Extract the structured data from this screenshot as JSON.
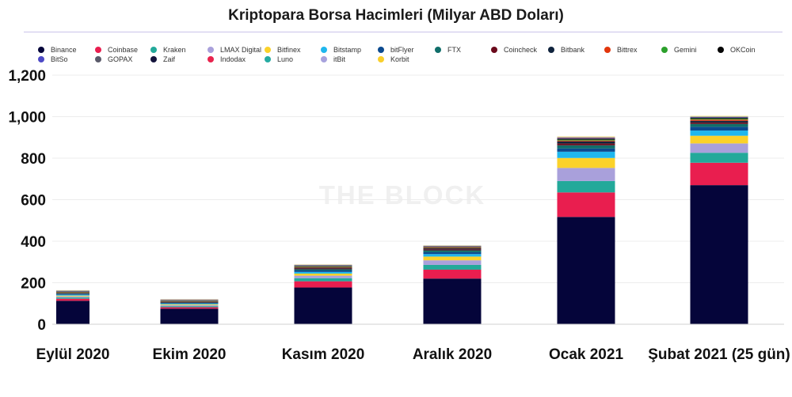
{
  "chart_data": {
    "type": "bar",
    "stacked": true,
    "title": "Kriptopara Borsa Hacimleri (Milyar ABD Doları)",
    "watermark": "THE BLOCK",
    "categories": [
      "Eylül 2020",
      "Ekim 2020",
      "Kasım 2020",
      "Aralık 2020",
      "Ocak 2021",
      "Şubat 2021 (25 gün)"
    ],
    "ylim": [
      0,
      1200
    ],
    "yticks": [
      0,
      200,
      400,
      600,
      800,
      1000,
      1200
    ],
    "ytick_labels": [
      "0",
      "200",
      "400",
      "600",
      "800",
      "1,000",
      "1,200"
    ],
    "grid": true,
    "legend_position": "top",
    "series": [
      {
        "name": "Binance",
        "color": "#05053a",
        "values": [
          113,
          75,
          177,
          220,
          517,
          670
        ]
      },
      {
        "name": "Coinbase",
        "color": "#e91e4f",
        "values": [
          10,
          7,
          30,
          43,
          118,
          108
        ]
      },
      {
        "name": "Kraken",
        "color": "#23a99a",
        "values": [
          6,
          5,
          15,
          23,
          55,
          48
        ]
      },
      {
        "name": "LMAX Digital",
        "color": "#a9a0db",
        "values": [
          5,
          5,
          12,
          22,
          63,
          45
        ]
      },
      {
        "name": "Bitfinex",
        "color": "#fbd22a",
        "values": [
          4,
          4,
          10,
          18,
          48,
          37
        ]
      },
      {
        "name": "Bitstamp",
        "color": "#1fb7ee",
        "values": [
          4,
          3,
          8,
          12,
          30,
          25
        ]
      },
      {
        "name": "bitFlyer",
        "color": "#0b4a8f",
        "values": [
          3,
          3,
          7,
          9,
          16,
          18
        ]
      },
      {
        "name": "FTX",
        "color": "#106e6a",
        "values": [
          3,
          3,
          6,
          9,
          15,
          14
        ]
      },
      {
        "name": "Coincheck",
        "color": "#6b0a1c",
        "values": [
          2,
          2,
          4,
          5,
          9,
          7
        ]
      },
      {
        "name": "Bitbank",
        "color": "#10233d",
        "values": [
          2,
          2,
          4,
          5,
          10,
          8
        ]
      },
      {
        "name": "Bittrex",
        "color": "#e2360c",
        "values": [
          2,
          2,
          3,
          3,
          4,
          6
        ]
      },
      {
        "name": "Gemini",
        "color": "#2ca02c",
        "values": [
          2,
          2,
          3,
          2,
          4,
          4
        ]
      },
      {
        "name": "OKCoin",
        "color": "#050505",
        "values": [
          1,
          1,
          2,
          2,
          5,
          4
        ]
      },
      {
        "name": "BitSo",
        "color": "#4d4ac6",
        "values": [
          1,
          1,
          1,
          1,
          2,
          2
        ]
      },
      {
        "name": "GOPAX",
        "color": "#5a5a6a",
        "values": [
          1,
          1,
          1,
          1,
          1,
          1
        ]
      },
      {
        "name": "Zaif",
        "color": "#14143c",
        "values": [
          1,
          1,
          1,
          1,
          1,
          1
        ]
      },
      {
        "name": "Indodax",
        "color": "#e8244d",
        "values": [
          1,
          1,
          1,
          1,
          2,
          1
        ]
      },
      {
        "name": "Luno",
        "color": "#26aba3",
        "values": [
          1,
          1,
          1,
          1,
          1,
          1
        ]
      },
      {
        "name": "itBit",
        "color": "#a7a2dd",
        "values": [
          1,
          1,
          1,
          1,
          1,
          1
        ]
      },
      {
        "name": "Korbit",
        "color": "#f9cf2c",
        "values": [
          1,
          1,
          1,
          1,
          2,
          2
        ]
      }
    ]
  }
}
